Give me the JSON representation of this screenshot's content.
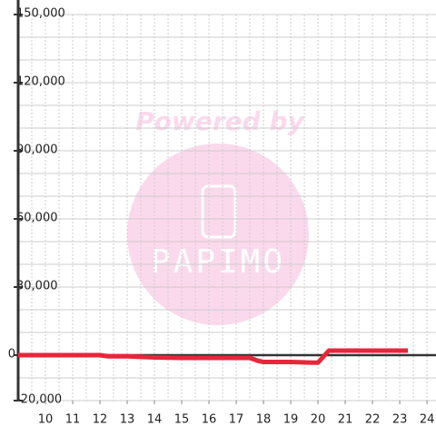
{
  "chart_data": {
    "type": "line",
    "x": [
      9,
      10,
      11,
      12,
      12.3,
      13,
      14,
      15,
      16,
      17,
      17.5,
      17.8,
      18,
      19,
      19.8,
      20,
      20.4,
      21,
      22,
      23.3
    ],
    "series": [
      {
        "color": "#e8263a",
        "values": [
          0,
          0,
          0,
          0,
          -500,
          -500,
          -1000,
          -1200,
          -1200,
          -1200,
          -1200,
          -2500,
          -3000,
          -3000,
          -3300,
          -3300,
          2000,
          2000,
          2000,
          2000
        ]
      }
    ],
    "xlim": [
      9,
      24.33
    ],
    "xticks": [
      10,
      11,
      12,
      13,
      14,
      15,
      16,
      17,
      18,
      19,
      20,
      21,
      22,
      23,
      24
    ],
    "ylim": [
      -20000,
      150000
    ],
    "yticks": [
      {
        "value": -20000,
        "label": "-20,000"
      },
      0,
      {
        "value": 30000,
        "label": "30,000"
      },
      {
        "value": 60000,
        "label": "60,000"
      },
      {
        "value": 90000,
        "label": "90,000"
      },
      {
        "value": 120000,
        "label": "120,000"
      },
      {
        "value": 150000,
        "label": "150,000"
      }
    ],
    "grid": true,
    "minor_ystep": 10000,
    "minor_xstep": 0.5,
    "watermark": {
      "text": "Powered by",
      "logo": "PAPIMO"
    }
  }
}
